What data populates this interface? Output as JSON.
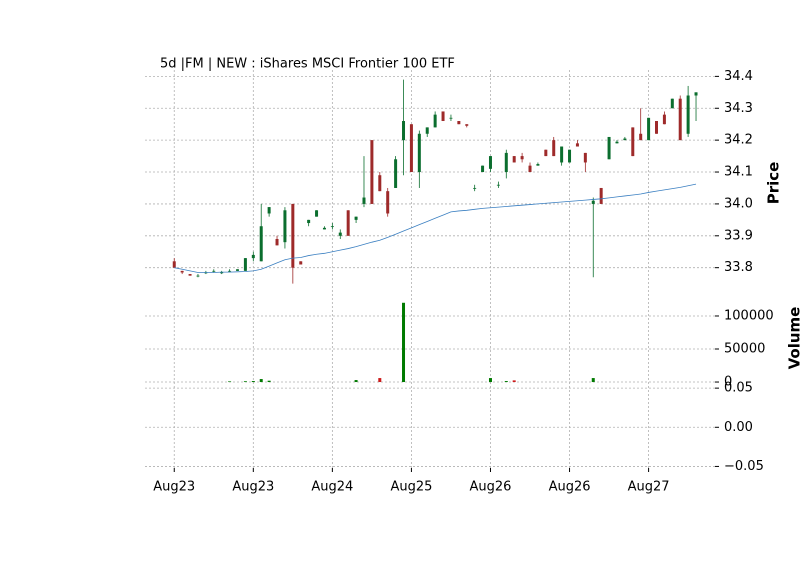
{
  "chart_data": {
    "type": "candlestick",
    "title": "5d |FM | NEW : iShares MSCI Frontier 100 ETF",
    "ylabel": "Price",
    "y2label": "Volume",
    "up_color": "#0b6e2e",
    "down_color": "#9e2a2a",
    "ma_color": "#3a7fc1",
    "volume_up_color": "#007a00",
    "volume_down_color": "#cc1a1a",
    "grid": true,
    "categories": [
      "Aug23",
      null,
      null,
      null,
      null,
      null,
      null,
      null,
      null,
      null,
      "Aug23",
      null,
      null,
      null,
      null,
      null,
      null,
      null,
      null,
      null,
      "Aug24",
      null,
      null,
      null,
      null,
      null,
      null,
      null,
      null,
      null,
      "Aug25",
      null,
      null,
      null,
      null,
      null,
      null,
      null,
      null,
      null,
      "Aug26",
      null,
      null,
      null,
      null,
      null,
      null,
      null,
      null,
      null,
      "Aug26",
      null,
      null,
      null,
      null,
      null,
      null,
      null,
      null,
      null,
      "Aug27",
      null,
      null,
      null,
      null,
      null,
      null
    ],
    "xlim": [
      -3.7,
      68.4
    ],
    "open": [
      33.82,
      33.79,
      33.78,
      33.775,
      33.785,
      33.79,
      33.785,
      33.79,
      33.79,
      33.79,
      33.83,
      33.82,
      33.97,
      33.89,
      33.88,
      34.0,
      33.82,
      33.94,
      33.96,
      33.92,
      33.93,
      33.9,
      33.98,
      33.95,
      34.0,
      34.2,
      34.09,
      34.04,
      34.05,
      34.2,
      34.25,
      34.1,
      34.22,
      34.24,
      34.29,
      34.27,
      34.26,
      34.25,
      34.05,
      34.1,
      34.11,
      34.06,
      34.1,
      34.15,
      34.15,
      34.12,
      34.12,
      34.17,
      34.2,
      34.13,
      34.13,
      34.19,
      34.16,
      34.0,
      34.05,
      34.14,
      34.19,
      34.2,
      34.24,
      34.22,
      34.2,
      34.26,
      34.28,
      34.3,
      34.33,
      34.22,
      34.34
    ],
    "high": [
      33.83,
      33.79,
      33.78,
      33.78,
      33.79,
      33.795,
      33.79,
      33.795,
      33.795,
      33.83,
      33.85,
      34.0,
      33.99,
      33.9,
      33.99,
      34.0,
      33.82,
      33.95,
      33.98,
      33.93,
      33.94,
      33.92,
      33.98,
      33.96,
      34.15,
      34.2,
      34.1,
      34.05,
      34.15,
      34.39,
      34.25,
      34.23,
      34.24,
      34.29,
      34.29,
      34.28,
      34.26,
      34.25,
      34.06,
      34.12,
      34.15,
      34.07,
      34.17,
      34.15,
      34.16,
      34.13,
      34.13,
      34.17,
      34.21,
      34.18,
      34.17,
      34.2,
      34.16,
      34.02,
      34.05,
      34.21,
      34.2,
      34.21,
      34.24,
      34.3,
      34.27,
      34.26,
      34.29,
      34.33,
      34.34,
      34.37,
      34.35
    ],
    "low": [
      33.8,
      33.78,
      33.775,
      33.77,
      33.78,
      33.785,
      33.78,
      33.785,
      33.79,
      33.79,
      33.82,
      33.82,
      33.96,
      33.87,
      33.86,
      33.75,
      33.81,
      33.93,
      33.96,
      33.92,
      33.92,
      33.89,
      33.9,
      33.94,
      33.99,
      34.0,
      34.04,
      33.96,
      34.05,
      34.09,
      34.1,
      34.05,
      34.21,
      34.24,
      34.26,
      34.26,
      34.25,
      34.24,
      34.04,
      34.1,
      34.1,
      34.05,
      34.08,
      34.13,
      34.13,
      34.1,
      34.12,
      34.15,
      34.15,
      34.12,
      34.13,
      34.18,
      34.1,
      33.77,
      34.0,
      34.14,
      34.19,
      34.2,
      34.15,
      34.2,
      34.2,
      34.22,
      34.25,
      34.3,
      34.2,
      34.21,
      34.26
    ],
    "close": [
      33.8,
      33.785,
      33.775,
      33.775,
      33.785,
      33.79,
      33.785,
      33.79,
      33.795,
      33.83,
      33.84,
      33.93,
      33.99,
      33.87,
      33.98,
      33.8,
      33.81,
      33.95,
      33.98,
      33.925,
      33.93,
      33.91,
      33.9,
      33.96,
      34.02,
      34.0,
      34.04,
      33.97,
      34.14,
      34.26,
      34.1,
      34.22,
      34.24,
      34.28,
      34.26,
      34.27,
      34.25,
      34.245,
      34.05,
      34.12,
      34.15,
      34.06,
      34.16,
      34.13,
      34.14,
      34.1,
      34.125,
      34.15,
      34.15,
      34.18,
      34.17,
      34.18,
      34.13,
      34.01,
      34.0,
      34.21,
      34.195,
      34.205,
      34.15,
      34.2,
      34.27,
      34.22,
      34.25,
      34.33,
      34.2,
      34.34,
      34.35
    ],
    "ma": [
      33.8,
      33.795,
      33.79,
      33.785,
      33.785,
      33.785,
      33.786,
      33.786,
      33.787,
      33.788,
      33.79,
      33.795,
      33.805,
      33.815,
      33.825,
      33.83,
      33.832,
      33.838,
      33.842,
      33.845,
      33.85,
      33.855,
      33.86,
      33.866,
      33.873,
      33.88,
      33.886,
      33.895,
      33.905,
      33.915,
      33.925,
      33.935,
      33.945,
      33.955,
      33.965,
      33.975,
      33.978,
      33.98,
      33.983,
      33.986,
      33.988,
      33.99,
      33.992,
      33.994,
      33.996,
      33.998,
      34.0,
      34.002,
      34.004,
      34.006,
      34.008,
      34.01,
      34.012,
      34.014,
      34.016,
      34.019,
      34.022,
      34.025,
      34.028,
      34.031,
      34.036,
      34.04,
      34.044,
      34.048,
      34.052,
      34.057,
      34.062
    ],
    "volume": [
      0,
      0,
      0,
      0,
      0,
      0,
      0,
      1000,
      0,
      1200,
      1500,
      4500,
      2000,
      0,
      0,
      0,
      0,
      0,
      0,
      0,
      0,
      0,
      0,
      3000,
      0,
      0,
      6000,
      0,
      0,
      120000,
      0,
      0,
      0,
      0,
      0,
      0,
      0,
      0,
      0,
      0,
      6000,
      0,
      1500,
      2500,
      0,
      0,
      0,
      0,
      0,
      0,
      0,
      0,
      0,
      6000,
      0,
      0,
      0,
      0,
      0,
      0,
      0,
      0,
      0,
      0,
      0,
      0,
      0
    ],
    "ylim": [
      33.73,
      34.42
    ],
    "yticks": [
      33.8,
      33.9,
      {
        "value": 34,
        "label": "34.0"
      },
      34.1,
      34.2,
      34.3,
      34.4
    ],
    "y2lim": [
      -4500,
      134800
    ],
    "y2ticks": [
      0,
      50000,
      100000
    ],
    "y3lim": [
      -0.052,
      0.054
    ],
    "y3ticks": [
      {
        "value": -0.05,
        "label": "−0.05"
      },
      {
        "value": 0,
        "label": "0.00"
      },
      {
        "value": 0.05,
        "label": "0.05"
      }
    ]
  }
}
